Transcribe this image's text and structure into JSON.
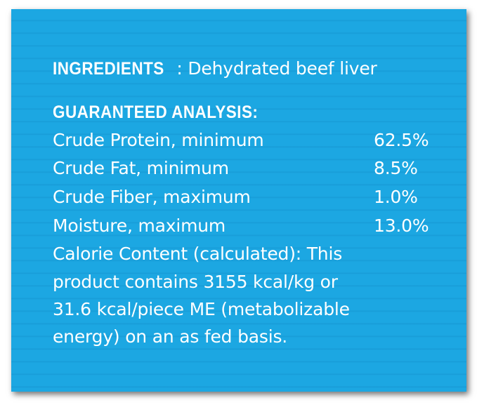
{
  "ingredients": {
    "label": "INGREDIENTS",
    "text": "Dehydrated beef liver"
  },
  "analysis": {
    "label": "GUARANTEED ANALYSIS:",
    "rows": [
      {
        "name": "Crude Protein, minimum",
        "value": "62.5%"
      },
      {
        "name": "Crude Fat, minimum",
        "value": "8.5%"
      },
      {
        "name": "Crude Fiber, maximum",
        "value": "1.0%"
      },
      {
        "name": "Moisture, maximum",
        "value": "13.0%"
      }
    ],
    "calorie_lines": [
      "Calorie Content (calculated): This",
      "product contains 3155 kcal/kg or",
      "31.6 kcal/piece ME (metabolizable",
      "energy) on an as fed basis."
    ]
  },
  "colors": {
    "panel": "#1ca7e2",
    "text": "#ffffff"
  }
}
